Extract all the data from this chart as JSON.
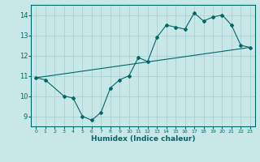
{
  "xlabel": "Humidex (Indice chaleur)",
  "bg_color": "#c8e8e8",
  "grid_color": "#b0d4d4",
  "line_color": "#006868",
  "xlim": [
    -0.5,
    23.5
  ],
  "ylim": [
    8.5,
    14.5
  ],
  "xticks": [
    0,
    1,
    2,
    3,
    4,
    5,
    6,
    7,
    8,
    9,
    10,
    11,
    12,
    13,
    14,
    15,
    16,
    17,
    18,
    19,
    20,
    21,
    22,
    23
  ],
  "yticks": [
    9,
    10,
    11,
    12,
    13,
    14
  ],
  "data_line": {
    "x": [
      0,
      1,
      3,
      4,
      5,
      6,
      7,
      8,
      9,
      10,
      11,
      12,
      13,
      14,
      15,
      16,
      17,
      18,
      19,
      20,
      21,
      22,
      23
    ],
    "y": [
      10.9,
      10.8,
      10.0,
      9.9,
      9.0,
      8.8,
      9.2,
      10.4,
      10.8,
      11.0,
      11.9,
      11.7,
      12.9,
      13.5,
      13.4,
      13.3,
      14.1,
      13.7,
      13.9,
      14.0,
      13.5,
      12.5,
      12.4
    ]
  },
  "trend_line": {
    "x": [
      0,
      23
    ],
    "y": [
      10.9,
      12.4
    ]
  }
}
